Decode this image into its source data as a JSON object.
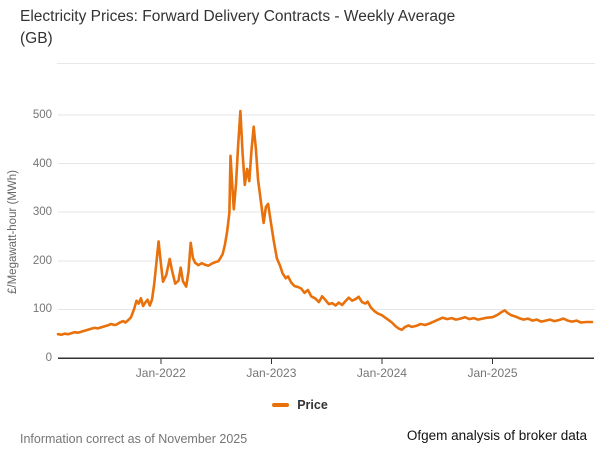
{
  "page": {
    "title": "Electricity Prices: Forward Delivery Contracts - Weekly Average (GB)",
    "footnote_left": "Information correct as of November 2025",
    "footnote_right": "Ofgem analysis of broker data"
  },
  "legend": {
    "items": [
      {
        "label": "Price",
        "color": "#E8710C"
      }
    ]
  },
  "colors": {
    "accent_orange": "#E8710C",
    "grid": "#e6e6e6",
    "axis": "#333333",
    "tick_text": "#757575",
    "title_text": "#333333",
    "muted_text": "#757575",
    "footnote_right_text": "#111111"
  },
  "chart_data": {
    "type": "line",
    "title": "Electricity Prices: Forward Delivery Contracts - Weekly Average (GB)",
    "xlabel": "",
    "ylabel": "£/Megawatt-hour (MWh)",
    "x_min": 2021.07,
    "x_max": 2025.9,
    "ylim": [
      0,
      500
    ],
    "y_ticks": [
      0,
      100,
      200,
      300,
      400,
      500
    ],
    "x_ticks": [
      {
        "value": 2022,
        "label": "Jan-2022"
      },
      {
        "value": 2023,
        "label": "Jan-2023"
      },
      {
        "value": 2024,
        "label": "Jan-2024"
      },
      {
        "value": 2025,
        "label": "Jan-2025"
      }
    ],
    "grid": "horizontal-only",
    "legend_position": "bottom",
    "series": [
      {
        "name": "Price",
        "color": "#E8710C",
        "points": [
          [
            2021.07,
            49
          ],
          [
            2021.1,
            48
          ],
          [
            2021.13,
            50
          ],
          [
            2021.16,
            49
          ],
          [
            2021.19,
            51
          ],
          [
            2021.22,
            53
          ],
          [
            2021.25,
            52
          ],
          [
            2021.28,
            54
          ],
          [
            2021.31,
            56
          ],
          [
            2021.34,
            58
          ],
          [
            2021.37,
            60
          ],
          [
            2021.4,
            62
          ],
          [
            2021.43,
            61
          ],
          [
            2021.46,
            63
          ],
          [
            2021.49,
            65
          ],
          [
            2021.52,
            67
          ],
          [
            2021.55,
            70
          ],
          [
            2021.58,
            68
          ],
          [
            2021.6,
            69
          ],
          [
            2021.63,
            73
          ],
          [
            2021.66,
            76
          ],
          [
            2021.68,
            73
          ],
          [
            2021.71,
            79
          ],
          [
            2021.73,
            84
          ],
          [
            2021.74,
            90
          ],
          [
            2021.76,
            102
          ],
          [
            2021.78,
            118
          ],
          [
            2021.8,
            112
          ],
          [
            2021.82,
            123
          ],
          [
            2021.84,
            107
          ],
          [
            2021.86,
            114
          ],
          [
            2021.88,
            120
          ],
          [
            2021.9,
            108
          ],
          [
            2021.92,
            120
          ],
          [
            2021.94,
            152
          ],
          [
            2021.96,
            196
          ],
          [
            2021.98,
            240
          ],
          [
            2022.0,
            196
          ],
          [
            2022.02,
            157
          ],
          [
            2022.05,
            171
          ],
          [
            2022.08,
            204
          ],
          [
            2022.1,
            181
          ],
          [
            2022.13,
            153
          ],
          [
            2022.16,
            159
          ],
          [
            2022.18,
            186
          ],
          [
            2022.2,
            158
          ],
          [
            2022.23,
            147
          ],
          [
            2022.25,
            178
          ],
          [
            2022.27,
            237
          ],
          [
            2022.29,
            206
          ],
          [
            2022.31,
            196
          ],
          [
            2022.34,
            191
          ],
          [
            2022.37,
            195
          ],
          [
            2022.4,
            192
          ],
          [
            2022.43,
            190
          ],
          [
            2022.46,
            194
          ],
          [
            2022.49,
            197
          ],
          [
            2022.52,
            199
          ],
          [
            2022.54,
            206
          ],
          [
            2022.56,
            214
          ],
          [
            2022.58,
            233
          ],
          [
            2022.6,
            261
          ],
          [
            2022.62,
            299
          ],
          [
            2022.63,
            416
          ],
          [
            2022.65,
            341
          ],
          [
            2022.66,
            306
          ],
          [
            2022.68,
            358
          ],
          [
            2022.7,
            440
          ],
          [
            2022.72,
            508
          ],
          [
            2022.74,
            421
          ],
          [
            2022.76,
            356
          ],
          [
            2022.78,
            389
          ],
          [
            2022.8,
            364
          ],
          [
            2022.82,
            428
          ],
          [
            2022.84,
            476
          ],
          [
            2022.86,
            430
          ],
          [
            2022.88,
            366
          ],
          [
            2022.91,
            314
          ],
          [
            2022.93,
            278
          ],
          [
            2022.95,
            311
          ],
          [
            2022.97,
            317
          ],
          [
            2023.0,
            272
          ],
          [
            2023.02,
            243
          ],
          [
            2023.05,
            205
          ],
          [
            2023.08,
            189
          ],
          [
            2023.1,
            175
          ],
          [
            2023.13,
            164
          ],
          [
            2023.15,
            168
          ],
          [
            2023.18,
            155
          ],
          [
            2023.21,
            148
          ],
          [
            2023.24,
            146
          ],
          [
            2023.27,
            143
          ],
          [
            2023.3,
            134
          ],
          [
            2023.33,
            140
          ],
          [
            2023.36,
            127
          ],
          [
            2023.4,
            122
          ],
          [
            2023.43,
            115
          ],
          [
            2023.46,
            127
          ],
          [
            2023.49,
            119
          ],
          [
            2023.52,
            111
          ],
          [
            2023.55,
            113
          ],
          [
            2023.58,
            108
          ],
          [
            2023.61,
            114
          ],
          [
            2023.64,
            109
          ],
          [
            2023.67,
            117
          ],
          [
            2023.7,
            124
          ],
          [
            2023.73,
            118
          ],
          [
            2023.76,
            121
          ],
          [
            2023.79,
            126
          ],
          [
            2023.82,
            115
          ],
          [
            2023.85,
            112
          ],
          [
            2023.87,
            116
          ],
          [
            2023.9,
            104
          ],
          [
            2023.93,
            97
          ],
          [
            2023.96,
            92
          ],
          [
            2024.0,
            88
          ],
          [
            2024.03,
            83
          ],
          [
            2024.06,
            78
          ],
          [
            2024.09,
            73
          ],
          [
            2024.12,
            66
          ],
          [
            2024.15,
            61
          ],
          [
            2024.18,
            58
          ],
          [
            2024.21,
            64
          ],
          [
            2024.24,
            67
          ],
          [
            2024.27,
            64
          ],
          [
            2024.31,
            66
          ],
          [
            2024.35,
            70
          ],
          [
            2024.39,
            68
          ],
          [
            2024.43,
            71
          ],
          [
            2024.47,
            75
          ],
          [
            2024.51,
            79
          ],
          [
            2024.55,
            83
          ],
          [
            2024.59,
            80
          ],
          [
            2024.63,
            82
          ],
          [
            2024.67,
            79
          ],
          [
            2024.71,
            81
          ],
          [
            2024.75,
            84
          ],
          [
            2024.79,
            80
          ],
          [
            2024.83,
            82
          ],
          [
            2024.87,
            79
          ],
          [
            2024.91,
            81
          ],
          [
            2024.95,
            83
          ],
          [
            2025.0,
            84
          ],
          [
            2025.04,
            88
          ],
          [
            2025.08,
            94
          ],
          [
            2025.11,
            98
          ],
          [
            2025.14,
            92
          ],
          [
            2025.17,
            88
          ],
          [
            2025.2,
            86
          ],
          [
            2025.24,
            82
          ],
          [
            2025.28,
            79
          ],
          [
            2025.32,
            81
          ],
          [
            2025.36,
            77
          ],
          [
            2025.4,
            79
          ],
          [
            2025.44,
            75
          ],
          [
            2025.48,
            77
          ],
          [
            2025.52,
            79
          ],
          [
            2025.56,
            76
          ],
          [
            2025.6,
            78
          ],
          [
            2025.64,
            81
          ],
          [
            2025.68,
            77
          ],
          [
            2025.72,
            75
          ],
          [
            2025.76,
            77
          ],
          [
            2025.8,
            73
          ],
          [
            2025.85,
            74
          ],
          [
            2025.9,
            74
          ]
        ]
      }
    ]
  }
}
